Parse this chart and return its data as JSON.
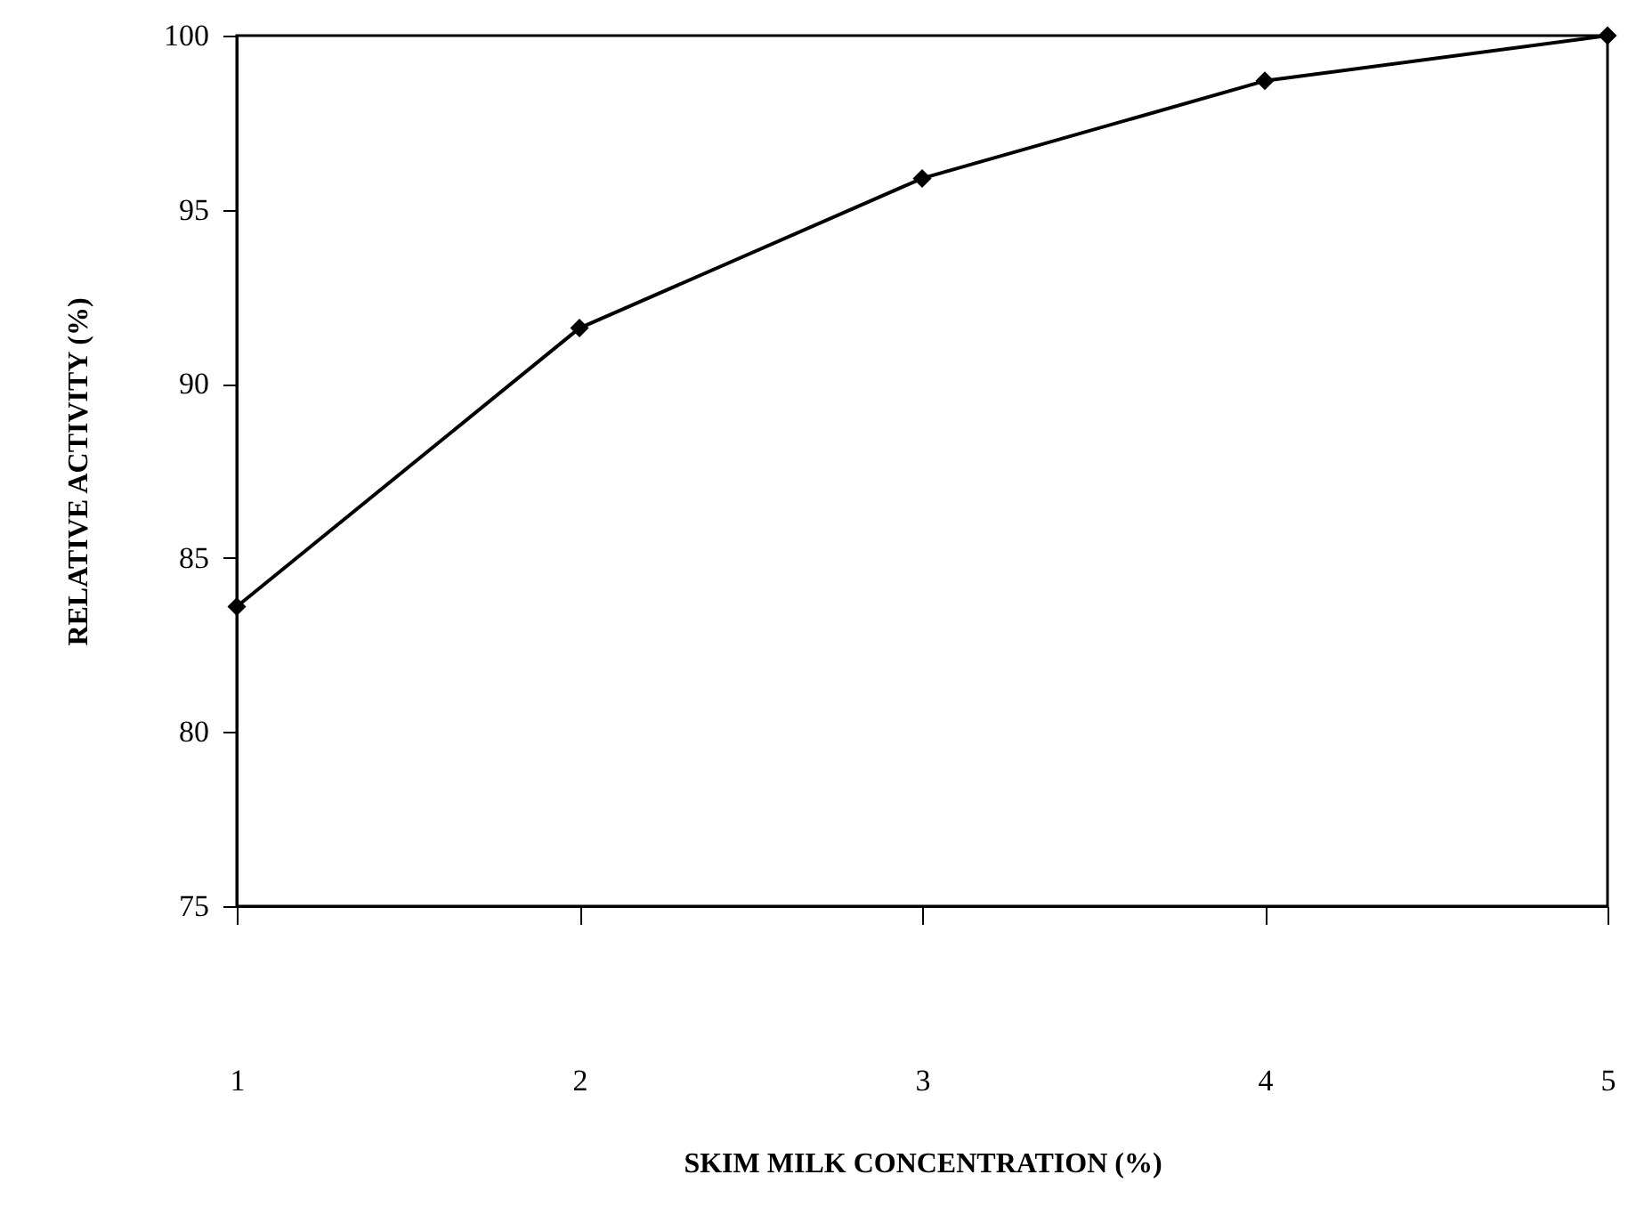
{
  "chart_data": {
    "type": "line",
    "xlabel": "SKIM MILK CONCENTRATION (%)",
    "ylabel": "RELATIVE ACTIVITY (%)",
    "x": [
      1,
      2,
      3,
      4,
      5
    ],
    "series": [
      {
        "color": "#000000",
        "values": [
          83.6,
          91.6,
          95.9,
          98.7,
          100
        ]
      }
    ],
    "xlim": [
      1,
      5
    ],
    "xticks": [
      1,
      2,
      3,
      4,
      5
    ],
    "ylim": [
      75,
      100
    ],
    "yticks": [
      75,
      80,
      85,
      90,
      95,
      100
    ],
    "marker": "diamond",
    "line_style": "solid",
    "grid": false
  }
}
